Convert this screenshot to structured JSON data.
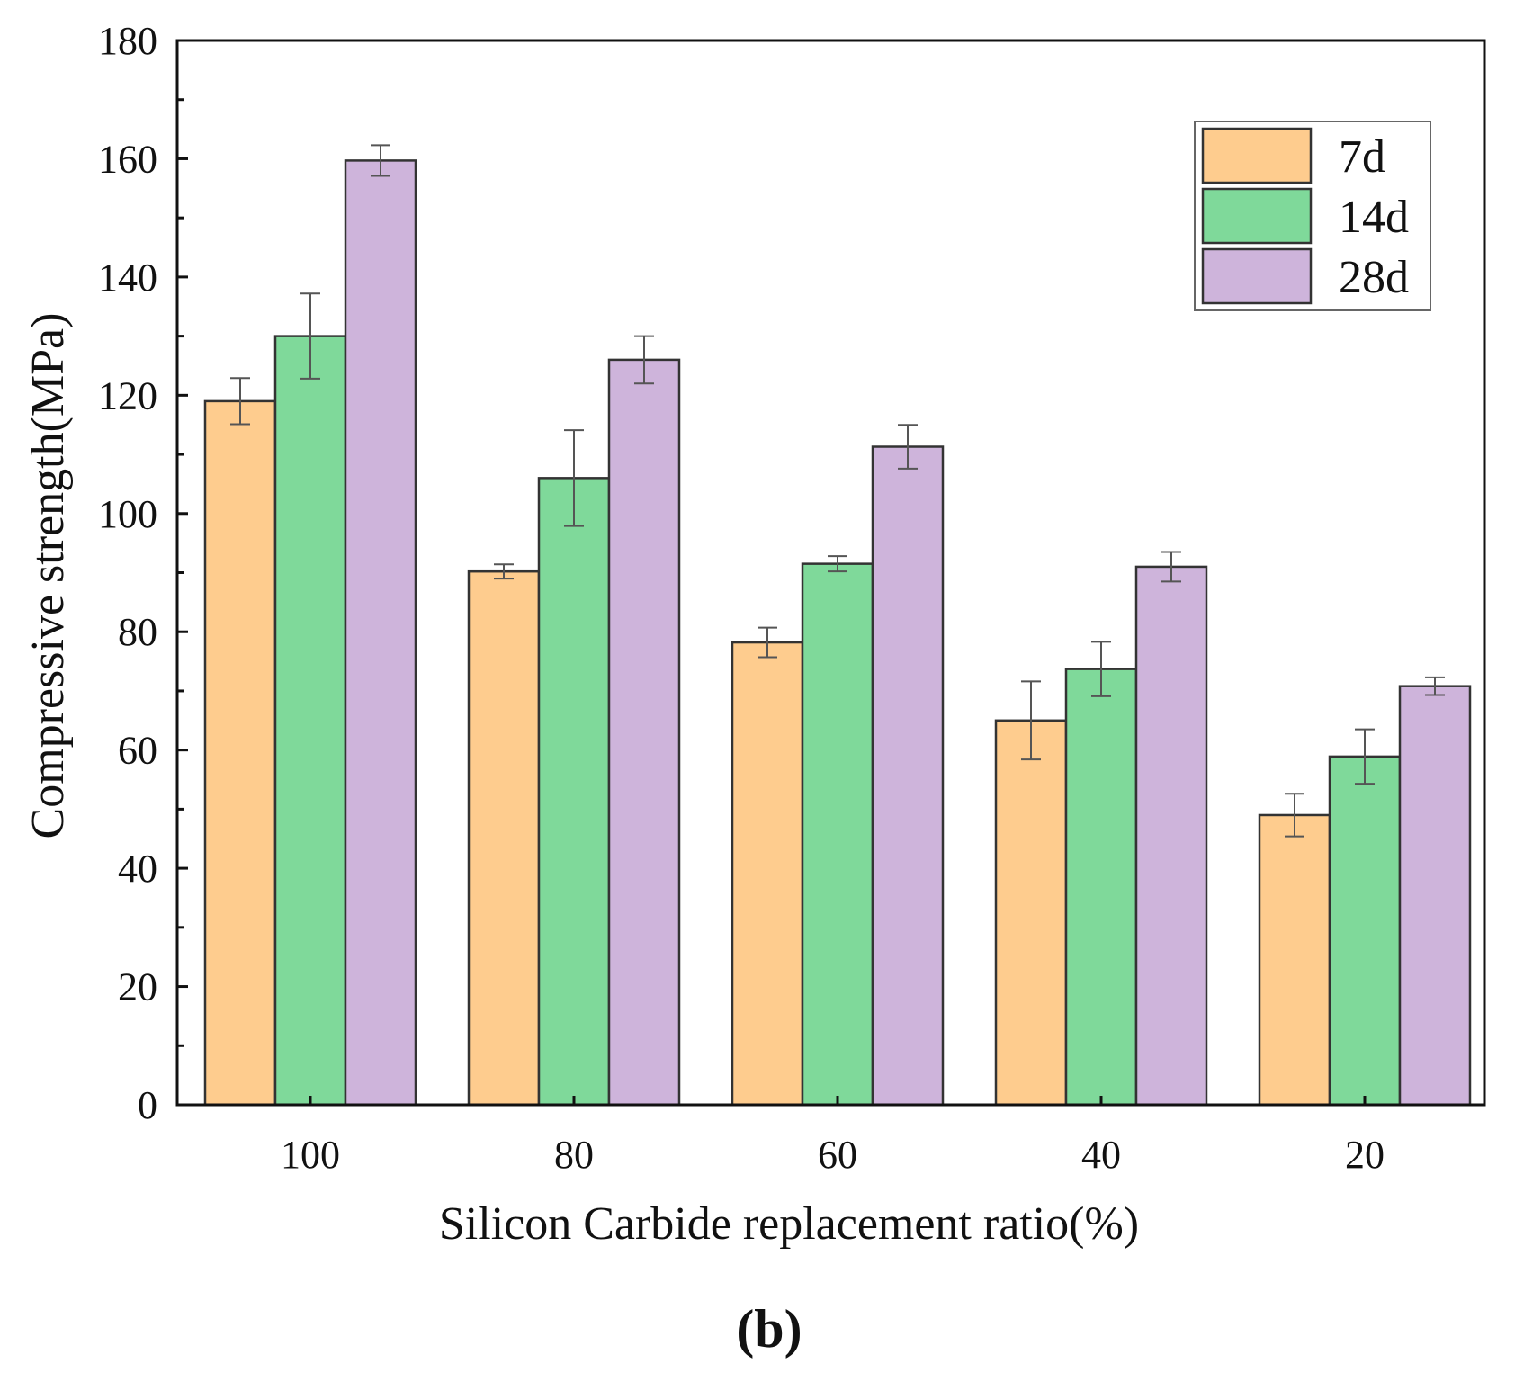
{
  "chart_data": {
    "type": "bar",
    "title": "",
    "xlabel": "Silicon Carbide replacement ratio(%)",
    "ylabel": "Compressive strength(MPa)",
    "ylim": [
      0,
      180
    ],
    "yticks": [
      "0",
      "20",
      "40",
      "60",
      "80",
      "100",
      "120",
      "140",
      "160",
      "180"
    ],
    "categories": [
      "100",
      "80",
      "60",
      "40",
      "20"
    ],
    "series": [
      {
        "name": "7d",
        "color": "#FECC8E",
        "values": [
          119,
          90.2,
          78.2,
          65.0,
          49.0
        ],
        "errors": [
          3.9,
          1.2,
          2.5,
          6.6,
          3.6
        ]
      },
      {
        "name": "14d",
        "color": "#7FD99A",
        "values": [
          130,
          106,
          91.5,
          73.7,
          58.9
        ],
        "errors": [
          7.2,
          8.1,
          1.3,
          4.6,
          4.6
        ]
      },
      {
        "name": "28d",
        "color": "#CEB4DB",
        "values": [
          159.7,
          126,
          111.3,
          91.0,
          70.8
        ],
        "errors": [
          2.6,
          4.0,
          3.7,
          2.5,
          1.5
        ]
      }
    ],
    "legend_position": "top-right",
    "grid": false,
    "error_bars": true
  },
  "panel_label": "(b)"
}
